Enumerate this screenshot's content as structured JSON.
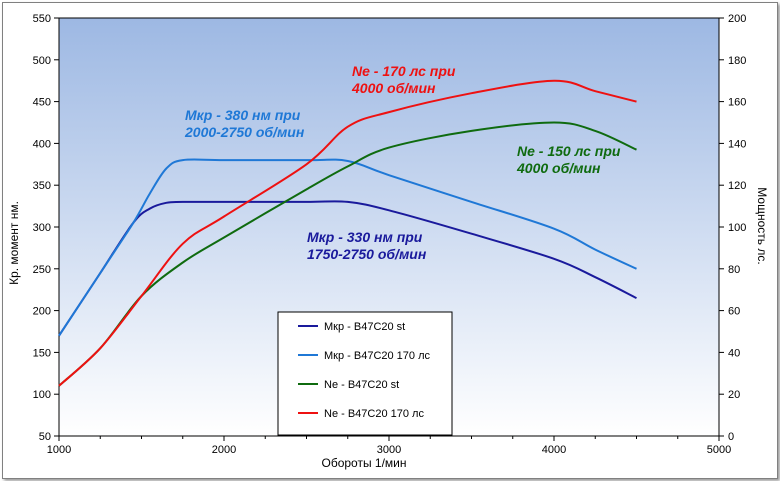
{
  "chart_data": {
    "type": "line",
    "xlabel": "Обороты 1/мин",
    "ylabel_left": "Кр. момент  нм.",
    "ylabel_right": "Мощность  лс.",
    "xlim": [
      1000,
      5000
    ],
    "ylim_left": [
      50,
      550
    ],
    "ylim_right": [
      0,
      200
    ],
    "x_ticks": [
      1000,
      2000,
      3000,
      4000,
      5000
    ],
    "y_left_ticks": [
      50,
      100,
      150,
      200,
      250,
      300,
      350,
      400,
      450,
      500,
      550
    ],
    "y_right_ticks": [
      0,
      20,
      40,
      60,
      80,
      100,
      120,
      140,
      160,
      180,
      200
    ],
    "colors": {
      "mkr_st": "#1a1a9c",
      "mkr_170": "#1f78d6",
      "ne_st": "#0f6b0f",
      "ne_170": "#ee1111"
    },
    "series": [
      {
        "key": "mkr_st",
        "name": "Мкр - B47C20 st",
        "axis": "left",
        "points": [
          [
            1000,
            170
          ],
          [
            1250,
            245
          ],
          [
            1450,
            305
          ],
          [
            1550,
            322
          ],
          [
            1650,
            329
          ],
          [
            1750,
            330
          ],
          [
            2000,
            330
          ],
          [
            2500,
            330
          ],
          [
            2750,
            330
          ],
          [
            3000,
            320
          ],
          [
            3500,
            292
          ],
          [
            4000,
            262
          ],
          [
            4250,
            240
          ],
          [
            4500,
            215
          ]
        ]
      },
      {
        "key": "mkr_170",
        "name": "Мкр - B47C20 170 лс",
        "axis": "left",
        "points": [
          [
            1000,
            170
          ],
          [
            1250,
            245
          ],
          [
            1450,
            305
          ],
          [
            1550,
            340
          ],
          [
            1650,
            370
          ],
          [
            1750,
            380
          ],
          [
            2000,
            380
          ],
          [
            2500,
            380
          ],
          [
            2750,
            379
          ],
          [
            3000,
            362
          ],
          [
            3500,
            330
          ],
          [
            4000,
            298
          ],
          [
            4250,
            273
          ],
          [
            4500,
            250
          ]
        ]
      },
      {
        "key": "ne_st",
        "name": "Ne  -  B47C20 st",
        "axis": "right",
        "points": [
          [
            1000,
            24
          ],
          [
            1250,
            42
          ],
          [
            1500,
            67
          ],
          [
            1750,
            83
          ],
          [
            2000,
            95
          ],
          [
            2500,
            118
          ],
          [
            2750,
            129
          ],
          [
            3000,
            138
          ],
          [
            3500,
            146
          ],
          [
            4000,
            150
          ],
          [
            4250,
            146
          ],
          [
            4500,
            137
          ]
        ]
      },
      {
        "key": "ne_170",
        "name": "Ne  -  B47C20 170 лс",
        "axis": "right",
        "points": [
          [
            1000,
            24
          ],
          [
            1250,
            42
          ],
          [
            1500,
            67
          ],
          [
            1750,
            92
          ],
          [
            2000,
            105
          ],
          [
            2500,
            130
          ],
          [
            2750,
            148
          ],
          [
            3000,
            155
          ],
          [
            3500,
            164
          ],
          [
            4000,
            170
          ],
          [
            4250,
            165
          ],
          [
            4500,
            160
          ]
        ]
      }
    ],
    "annotations": [
      {
        "key": "mkr_170",
        "lines": [
          "Мкр - 380 нм при",
          "2000-2750 об/мин"
        ]
      },
      {
        "key": "ne_170",
        "lines": [
          "Ne - 170 лс при",
          "4000 об/мин"
        ]
      },
      {
        "key": "ne_st",
        "lines": [
          "Ne - 150 лс при",
          "4000 об/мин"
        ]
      },
      {
        "key": "mkr_st",
        "lines": [
          "Мкр - 330 нм при",
          "1750-2750 об/мин"
        ]
      }
    ],
    "legend": {
      "placement": "bottom-center",
      "entries": [
        {
          "key": "mkr_st",
          "label": "Мкр - B47C20 st"
        },
        {
          "key": "mkr_170",
          "label": "Мкр - B47C20 170 лс"
        },
        {
          "key": "ne_st",
          "label": "Ne  -  B47C20 st"
        },
        {
          "key": "ne_170",
          "label": "Ne  -  B47C20 170 лс"
        }
      ]
    },
    "grid": false,
    "background": "vertical gradient blue to white"
  }
}
